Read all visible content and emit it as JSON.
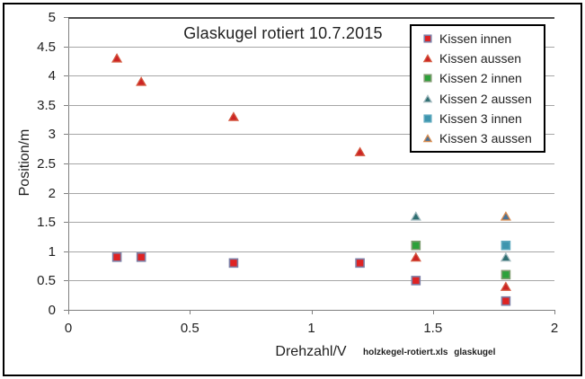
{
  "chart_data": {
    "type": "scatter",
    "title": "Glaskugel rotiert 10.7.2015",
    "xlabel": "Drehzahl/V",
    "ylabel": "Position/m",
    "annotation": "holzkegel-rotiert.xls glaskugel",
    "xlim": [
      0,
      2
    ],
    "ylim": [
      0,
      5
    ],
    "xticks": [
      0,
      0.5,
      1,
      1.5,
      2
    ],
    "yticks": [
      0,
      0.5,
      1,
      1.5,
      2,
      2.5,
      3,
      3.5,
      4,
      4.5,
      5
    ],
    "grid": "horizontal",
    "legend_position": "top-right-inside",
    "colors": {
      "gridline": "#a6a6a6",
      "axis": "#808080",
      "text": "#1f1f1f"
    },
    "series": [
      {
        "name": "Kissen innen",
        "marker": "square",
        "fill": "#df2323",
        "stroke": "#7d7fa6",
        "points": [
          [
            0.2,
            0.9
          ],
          [
            0.3,
            0.9
          ],
          [
            0.68,
            0.8
          ],
          [
            1.2,
            0.8
          ],
          [
            1.43,
            0.5
          ],
          [
            1.8,
            0.15
          ]
        ]
      },
      {
        "name": "Kissen aussen",
        "marker": "triangle",
        "fill": "#cc2424",
        "stroke": "#d4573f",
        "points": [
          [
            0.2,
            4.3
          ],
          [
            0.3,
            3.9
          ],
          [
            0.68,
            3.3
          ],
          [
            1.2,
            2.7
          ],
          [
            1.43,
            0.9
          ],
          [
            1.8,
            0.4
          ]
        ]
      },
      {
        "name": "Kissen 2 innen",
        "marker": "square",
        "fill": "#2ca13a",
        "stroke": "#7f9c71",
        "points": [
          [
            1.43,
            1.1
          ],
          [
            1.8,
            0.6
          ]
        ]
      },
      {
        "name": "Kissen 2 aussen",
        "marker": "triangle",
        "fill": "#2e6e71",
        "stroke": "#9fb8bd",
        "points": [
          [
            1.43,
            1.6
          ],
          [
            1.8,
            0.9
          ]
        ]
      },
      {
        "name": "Kissen 3 innen",
        "marker": "square",
        "fill": "#3e95ae",
        "stroke": "#5fa9be",
        "points": [
          [
            1.8,
            1.1
          ]
        ]
      },
      {
        "name": "Kissen 3 aussen",
        "marker": "triangle",
        "fill": "#4a7296",
        "stroke": "#d78b4f",
        "points": [
          [
            1.8,
            1.6
          ]
        ]
      }
    ]
  }
}
